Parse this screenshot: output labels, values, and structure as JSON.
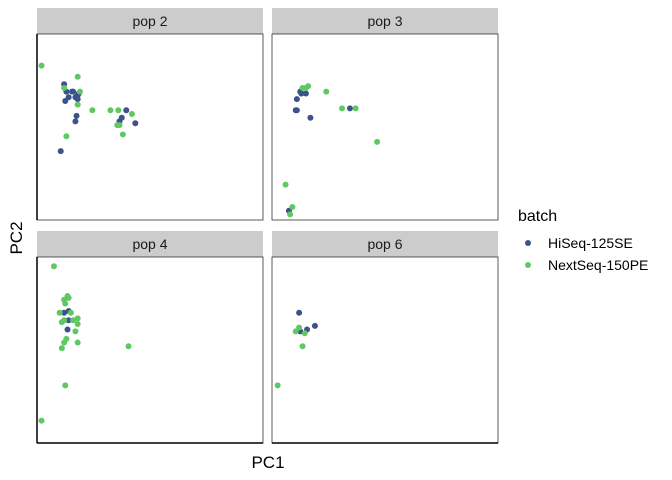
{
  "chart_data": {
    "type": "scatter",
    "facets": [
      "pop 2",
      "pop 3",
      "pop 4",
      "pop 6"
    ],
    "xlabel": "PC1",
    "ylabel": "PC2",
    "legend": {
      "title": "batch",
      "position": "right",
      "entries": [
        "HiSeq-125SE",
        "NextSeq-150PE"
      ]
    },
    "colors": {
      "HiSeq-125SE": "#3b528b",
      "NextSeq-150PE": "#5ec962",
      "strip": "#cccccc"
    },
    "grid": false,
    "tick_labels": false,
    "xlim": [
      0,
      100
    ],
    "ylim": [
      0,
      100
    ],
    "panels": [
      {
        "facet": "pop 2",
        "series": [
          {
            "name": "HiSeq-125SE",
            "x": [
              12,
              13,
              12.5,
              14,
              15.5,
              16,
              17,
              18,
              18,
              17.5,
              17,
              18.5,
              10.5,
              39.5,
              37.5,
              36.5,
              43.5
            ],
            "y": [
              73,
              69,
              64,
              66,
              69,
              69,
              66,
              67,
              65,
              56,
              53,
              68,
              37,
              59,
              55,
              53,
              52
            ]
          },
          {
            "name": "NextSeq-150PE",
            "x": [
              2,
              18,
              12,
              18,
              19,
              24.5,
              13,
              32.5,
              36,
              35.5,
              42,
              36.5,
              38
            ],
            "y": [
              83,
              77,
              71,
              62,
              69,
              59,
              45,
              59,
              59,
              51,
              57,
              51,
              46
            ]
          }
        ]
      },
      {
        "facet": "pop 3",
        "series": [
          {
            "name": "HiSeq-125SE",
            "x": [
              11,
              12.5,
              13,
              15,
              10.5,
              11,
              17,
              34.5,
              7.5
            ],
            "y": [
              65,
              69,
              68,
              68,
              59,
              59,
              55,
              60,
              5
            ]
          },
          {
            "name": "NextSeq-150PE",
            "x": [
              13.5,
              15,
              16,
              24,
              31,
              37,
              46.5,
              6,
              9,
              8
            ],
            "y": [
              71,
              71,
              72,
              69,
              60,
              60,
              42,
              19,
              7,
              3
            ]
          }
        ]
      },
      {
        "facet": "pop 4",
        "series": [
          {
            "name": "HiSeq-125SE",
            "x": [
              12,
              14,
              14,
              13.5
            ],
            "y": [
              70,
              71,
              66,
              61
            ]
          },
          {
            "name": "NextSeq-150PE",
            "x": [
              7.5,
              12,
              12.5,
              13.5,
              14,
              10,
              11,
              12,
              15,
              16,
              18,
              18,
              17,
              13,
              12,
              18,
              11,
              40.5,
              12.5,
              2
            ],
            "y": [
              95,
              77,
              75,
              79,
              78,
              70,
              65,
              66,
              70,
              66,
              67,
              64,
              60,
              56,
              54,
              54,
              51,
              52,
              31,
              12
            ]
          }
        ]
      },
      {
        "facet": "pop 6",
        "series": [
          {
            "name": "HiSeq-125SE",
            "x": [
              12,
              15.5,
              19,
              12.5
            ],
            "y": [
              70,
              61,
              63,
              60
            ]
          },
          {
            "name": "NextSeq-150PE",
            "x": [
              10.5,
              12,
              14.5,
              13.5,
              2.5
            ],
            "y": [
              60,
              62,
              59,
              52,
              31
            ]
          }
        ]
      }
    ]
  }
}
